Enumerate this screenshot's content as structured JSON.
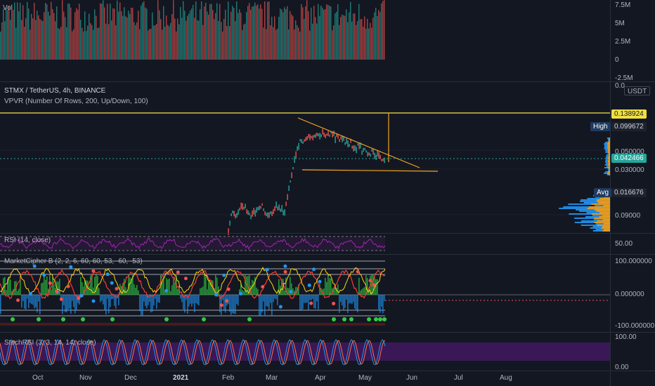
{
  "volume_pane": {
    "label": "Vol",
    "axis": [
      "7.5M",
      "5M",
      "2.5M",
      "0",
      "-2.5M"
    ]
  },
  "price_pane": {
    "symbol_line": "STMX / TetherUS, 4h, BINANCE",
    "indicator_line": "VPVR (Number Of Rows, 200, Up/Down, 100)",
    "axis": [
      "0.0",
      "0.050000",
      "0.030000",
      "0.09000"
    ],
    "currency_badge": "USDT",
    "level_top": "0.138924",
    "high_label": "High",
    "high_value": "0.099672",
    "last_price": "0.042466",
    "avg_label": "Avg",
    "avg_value": "0.016676",
    "colors": {
      "level": "#f0e040",
      "last": "#26a69a",
      "trend": "#f5a623"
    }
  },
  "rsi_pane": {
    "label": "RSI (14, close)",
    "axis_value": "50.00",
    "color": "#9c27b0"
  },
  "mc_pane": {
    "label": "MarketCipher B (2, 2, 6, 60, 60, 53, -60, -53)",
    "axis": [
      "100.000000",
      "0.000000",
      "-100.000000"
    ]
  },
  "stoch_pane": {
    "label": "StochRSI (3, 3, 14, 14, close)",
    "axis": [
      "100.00",
      "0.00"
    ]
  },
  "time_axis": [
    "Oct",
    "Nov",
    "Dec",
    "2021",
    "Feb",
    "Mar",
    "Apr",
    "May",
    "Jun",
    "Jul",
    "Aug"
  ]
}
